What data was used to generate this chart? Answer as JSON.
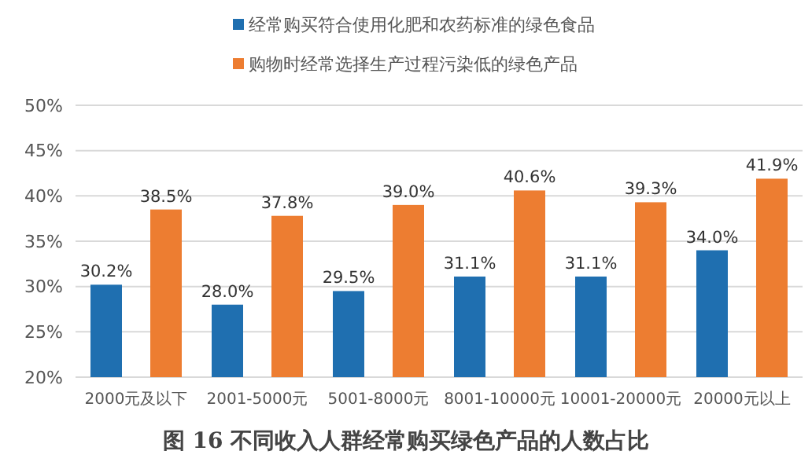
{
  "chart_data": {
    "type": "bar",
    "title": "图 16  不同收入人群经常购买绿色产品的人数占比",
    "categories": [
      "2000元及以下",
      "2001-5000元",
      "5001-8000元",
      "8001-10000元",
      "10001-20000元",
      "20000元以上"
    ],
    "series": [
      {
        "name": "经常购买符合使用化肥和农药标准的绿色食品",
        "color": "#1f6fb0",
        "values": [
          30.2,
          28.0,
          29.5,
          31.1,
          31.1,
          34.0
        ],
        "value_labels": [
          "30.2%",
          "28.0%",
          "29.5%",
          "31.1%",
          "31.1%",
          "34.0%"
        ]
      },
      {
        "name": "购物时经常选择生产过程污染低的绿色产品",
        "color": "#ed7d31",
        "values": [
          38.5,
          37.8,
          39.0,
          40.6,
          39.3,
          41.9
        ],
        "value_labels": [
          "38.5%",
          "37.8%",
          "39.0%",
          "40.6%",
          "39.3%",
          "41.9%"
        ]
      }
    ],
    "ylim": [
      20,
      50
    ],
    "yticks": [
      {
        "value": 20,
        "label": "20%"
      },
      {
        "value": 25,
        "label": "25%"
      },
      {
        "value": 30,
        "label": "30%"
      },
      {
        "value": 35,
        "label": "35%"
      },
      {
        "value": 40,
        "label": "40%"
      },
      {
        "value": 45,
        "label": "45%"
      },
      {
        "value": 50,
        "label": "50%"
      }
    ],
    "grid": "y",
    "legend": "top"
  }
}
